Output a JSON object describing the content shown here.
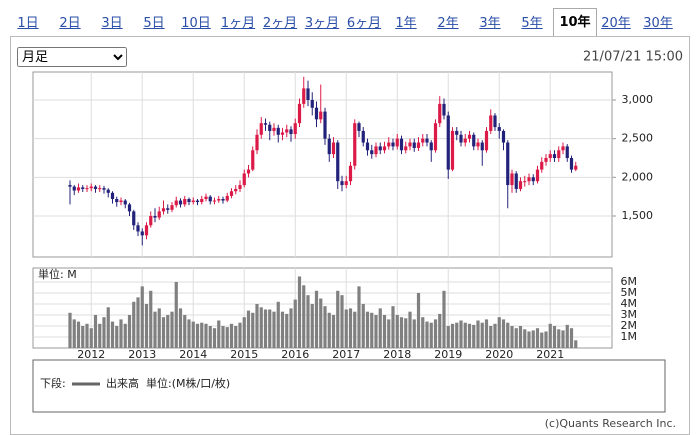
{
  "tabs": [
    {
      "label": "1日",
      "selected": false
    },
    {
      "label": "2日",
      "selected": false
    },
    {
      "label": "3日",
      "selected": false
    },
    {
      "label": "5日",
      "selected": false
    },
    {
      "label": "10日",
      "selected": false
    },
    {
      "label": "1ヶ月",
      "selected": false
    },
    {
      "label": "2ヶ月",
      "selected": false
    },
    {
      "label": "3ヶ月",
      "selected": false
    },
    {
      "label": "6ヶ月",
      "selected": false
    },
    {
      "label": "1年",
      "selected": false
    },
    {
      "label": "2年",
      "selected": false
    },
    {
      "label": "3年",
      "selected": false
    },
    {
      "label": "5年",
      "selected": false
    },
    {
      "label": "10年",
      "selected": true
    },
    {
      "label": "20年",
      "selected": false
    },
    {
      "label": "30年",
      "selected": false
    }
  ],
  "period_select": "月足",
  "timestamp": "21/07/21 15:00",
  "copyright": "(c)Quants Research Inc.",
  "chart_data": [
    {
      "type": "candlestick",
      "up_color": "#dc1a48",
      "down_color": "#22227a",
      "grid": true,
      "ylim": [
        970,
        3362
      ],
      "yticks": [
        {
          "value": 1500,
          "label": "1,500"
        },
        {
          "value": 2000,
          "label": "2,000"
        },
        {
          "value": 2500,
          "label": "2,500"
        },
        {
          "value": 3000,
          "label": "3,000"
        }
      ],
      "open": [
        1900,
        1880,
        1830,
        1870,
        1850,
        1860,
        1880,
        1850,
        1860,
        1840,
        1800,
        1720,
        1680,
        1700,
        1650,
        1560,
        1380,
        1300,
        1250,
        1380,
        1500,
        1480,
        1560,
        1600,
        1580,
        1640,
        1700,
        1650,
        1720,
        1680,
        1700,
        1680,
        1720,
        1750,
        1690,
        1700,
        1720,
        1700,
        1760,
        1820,
        1850,
        1900,
        2050,
        2100,
        2350,
        2550,
        2700,
        2680,
        2600,
        2640,
        2550,
        2580,
        2620,
        2560,
        2700,
        2950,
        3150,
        3000,
        2900,
        2750,
        2850,
        2500,
        2300,
        2450,
        1950,
        1900,
        1950,
        2150,
        2700,
        2600,
        2450,
        2350,
        2300,
        2400,
        2350,
        2400,
        2450,
        2400,
        2500,
        2350,
        2400,
        2450,
        2380,
        2450,
        2500,
        2450,
        2350,
        2700,
        2950,
        2800,
        2100,
        2600,
        2550,
        2450,
        2500,
        2550,
        2400,
        2450,
        2350,
        2600,
        2800,
        2650,
        2600,
        2450,
        1900,
        2050,
        1850,
        1950,
        1950,
        2000,
        1950,
        2100,
        2200,
        2250,
        2300,
        2250,
        2350,
        2400,
        2250,
        2100
      ],
      "high": [
        1960,
        1900,
        1920,
        1900,
        1900,
        1920,
        1900,
        1900,
        1890,
        1860,
        1820,
        1750,
        1740,
        1720,
        1670,
        1580,
        1420,
        1340,
        1420,
        1560,
        1600,
        1620,
        1700,
        1650,
        1680,
        1750,
        1730,
        1760,
        1740,
        1740,
        1720,
        1760,
        1790,
        1770,
        1740,
        1760,
        1750,
        1800,
        1860,
        1900,
        1960,
        2100,
        2160,
        2400,
        2620,
        2780,
        2760,
        2720,
        2700,
        2680,
        2640,
        2680,
        2660,
        2760,
        3020,
        3300,
        3250,
        3100,
        2980,
        3200,
        2900,
        2560,
        2520,
        2480,
        2020,
        2020,
        2200,
        2750,
        2720,
        2650,
        2500,
        2420,
        2450,
        2450,
        2460,
        2520,
        2500,
        2560,
        2540,
        2460,
        2500,
        2500,
        2520,
        2560,
        2560,
        2480,
        2750,
        3050,
        3020,
        2850,
        2650,
        2650,
        2600,
        2560,
        2600,
        2580,
        2500,
        2480,
        2650,
        2880,
        2830,
        2700,
        2620,
        2480,
        2100,
        2080,
        2000,
        2020,
        2050,
        2040,
        2150,
        2260,
        2300,
        2350,
        2350,
        2400,
        2450,
        2430,
        2280,
        2200
      ],
      "low": [
        1650,
        1770,
        1800,
        1810,
        1810,
        1820,
        1800,
        1810,
        1790,
        1740,
        1660,
        1620,
        1640,
        1600,
        1500,
        1320,
        1240,
        1120,
        1200,
        1350,
        1420,
        1450,
        1520,
        1530,
        1550,
        1610,
        1610,
        1620,
        1640,
        1650,
        1640,
        1650,
        1690,
        1650,
        1650,
        1670,
        1660,
        1680,
        1730,
        1780,
        1810,
        1870,
        2000,
        2080,
        2300,
        2500,
        2600,
        2480,
        2540,
        2450,
        2480,
        2520,
        2460,
        2500,
        2650,
        2900,
        2920,
        2800,
        2650,
        2700,
        2420,
        2200,
        2250,
        1850,
        1820,
        1860,
        1900,
        2100,
        2520,
        2400,
        2280,
        2240,
        2260,
        2300,
        2310,
        2360,
        2350,
        2360,
        2300,
        2310,
        2350,
        2330,
        2340,
        2400,
        2400,
        2200,
        2320,
        2650,
        2750,
        1980,
        2080,
        2480,
        2400,
        2400,
        2450,
        2350,
        2350,
        2150,
        2320,
        2560,
        2600,
        2500,
        2350,
        1600,
        1800,
        1800,
        1820,
        1880,
        1900,
        1900,
        1920,
        2060,
        2150,
        2200,
        2200,
        2200,
        2300,
        2200,
        2060,
        2080
      ],
      "close": [
        1880,
        1830,
        1870,
        1850,
        1860,
        1880,
        1850,
        1860,
        1840,
        1800,
        1720,
        1680,
        1700,
        1650,
        1560,
        1380,
        1300,
        1250,
        1380,
        1500,
        1480,
        1560,
        1600,
        1580,
        1640,
        1700,
        1650,
        1720,
        1680,
        1700,
        1680,
        1720,
        1750,
        1690,
        1700,
        1720,
        1700,
        1760,
        1820,
        1850,
        1900,
        2050,
        2100,
        2350,
        2550,
        2700,
        2680,
        2600,
        2640,
        2550,
        2580,
        2620,
        2560,
        2700,
        2950,
        3150,
        3000,
        2900,
        2750,
        2850,
        2500,
        2300,
        2450,
        1950,
        1900,
        1950,
        2150,
        2700,
        2600,
        2450,
        2350,
        2300,
        2400,
        2350,
        2400,
        2450,
        2400,
        2500,
        2350,
        2400,
        2450,
        2380,
        2450,
        2500,
        2450,
        2350,
        2700,
        2950,
        2800,
        2100,
        2600,
        2550,
        2450,
        2500,
        2550,
        2400,
        2450,
        2350,
        2600,
        2800,
        2650,
        2600,
        2450,
        1900,
        2050,
        1850,
        1950,
        1950,
        2000,
        1950,
        2100,
        2200,
        2250,
        2300,
        2250,
        2350,
        2400,
        2250,
        2100,
        2150
      ]
    },
    {
      "type": "bar",
      "unit_label": "単位: M",
      "legend_prefix": "下段:",
      "unit_note": "単位:(M株/口/枚)",
      "grid": true,
      "ylim": [
        0,
        7.27
      ],
      "yticks": [
        {
          "value": 1,
          "label": "1M"
        },
        {
          "value": 2,
          "label": "2M"
        },
        {
          "value": 3,
          "label": "3M"
        },
        {
          "value": 4,
          "label": "4M"
        },
        {
          "value": 5,
          "label": "5M"
        },
        {
          "value": 6,
          "label": "6M"
        }
      ],
      "categories": [
        null,
        null,
        null,
        null,
        null,
        "2012",
        null,
        null,
        null,
        null,
        null,
        null,
        null,
        null,
        null,
        null,
        null,
        "2013",
        null,
        null,
        null,
        null,
        null,
        null,
        null,
        null,
        null,
        null,
        null,
        "2014",
        null,
        null,
        null,
        null,
        null,
        null,
        null,
        null,
        null,
        null,
        null,
        "2015",
        null,
        null,
        null,
        null,
        null,
        null,
        null,
        null,
        null,
        null,
        null,
        "2016",
        null,
        null,
        null,
        null,
        null,
        null,
        null,
        null,
        null,
        null,
        null,
        "2017",
        null,
        null,
        null,
        null,
        null,
        null,
        null,
        null,
        null,
        null,
        null,
        "2018",
        null,
        null,
        null,
        null,
        null,
        null,
        null,
        null,
        null,
        null,
        null,
        "2019",
        null,
        null,
        null,
        null,
        null,
        null,
        null,
        null,
        null,
        null,
        null,
        "2020",
        null,
        null,
        null,
        null,
        null,
        null,
        null,
        null,
        null,
        null,
        null,
        "2021",
        null,
        null,
        null,
        null,
        null,
        null
      ],
      "series": [
        {
          "name": "出来高",
          "color": "#808080",
          "values": [
            3.2,
            2.6,
            2.4,
            2.0,
            2.2,
            1.8,
            3.0,
            2.2,
            2.8,
            3.7,
            2.4,
            2.0,
            2.6,
            2.2,
            3.0,
            4.2,
            4.6,
            5.6,
            4.0,
            5.2,
            3.3,
            3.6,
            2.8,
            3.0,
            3.3,
            6.0,
            3.6,
            3.0,
            2.6,
            2.4,
            2.2,
            2.3,
            2.2,
            2.0,
            1.8,
            2.5,
            2.0,
            1.9,
            2.2,
            2.0,
            2.3,
            2.8,
            3.4,
            3.2,
            4.0,
            3.7,
            3.5,
            3.5,
            3.3,
            4.2,
            3.3,
            3.1,
            3.6,
            4.4,
            6.5,
            5.7,
            4.8,
            4.0,
            5.2,
            4.5,
            3.8,
            3.2,
            3.0,
            5.2,
            4.8,
            3.5,
            3.6,
            3.3,
            5.6,
            4.0,
            3.3,
            3.2,
            3.0,
            3.6,
            3.0,
            2.6,
            3.8,
            3.0,
            2.8,
            2.7,
            3.3,
            2.6,
            5.0,
            2.8,
            2.4,
            2.3,
            2.6,
            3.1,
            5.2,
            2.0,
            2.2,
            2.3,
            2.5,
            2.3,
            2.2,
            2.1,
            2.5,
            2.3,
            2.6,
            2.0,
            2.2,
            2.8,
            2.6,
            2.3,
            2.0,
            1.8,
            2.0,
            1.7,
            1.5,
            1.6,
            1.8,
            1.4,
            1.5,
            2.2,
            2.0,
            1.7,
            1.6,
            2.1,
            1.8,
            0.7
          ]
        }
      ]
    }
  ]
}
